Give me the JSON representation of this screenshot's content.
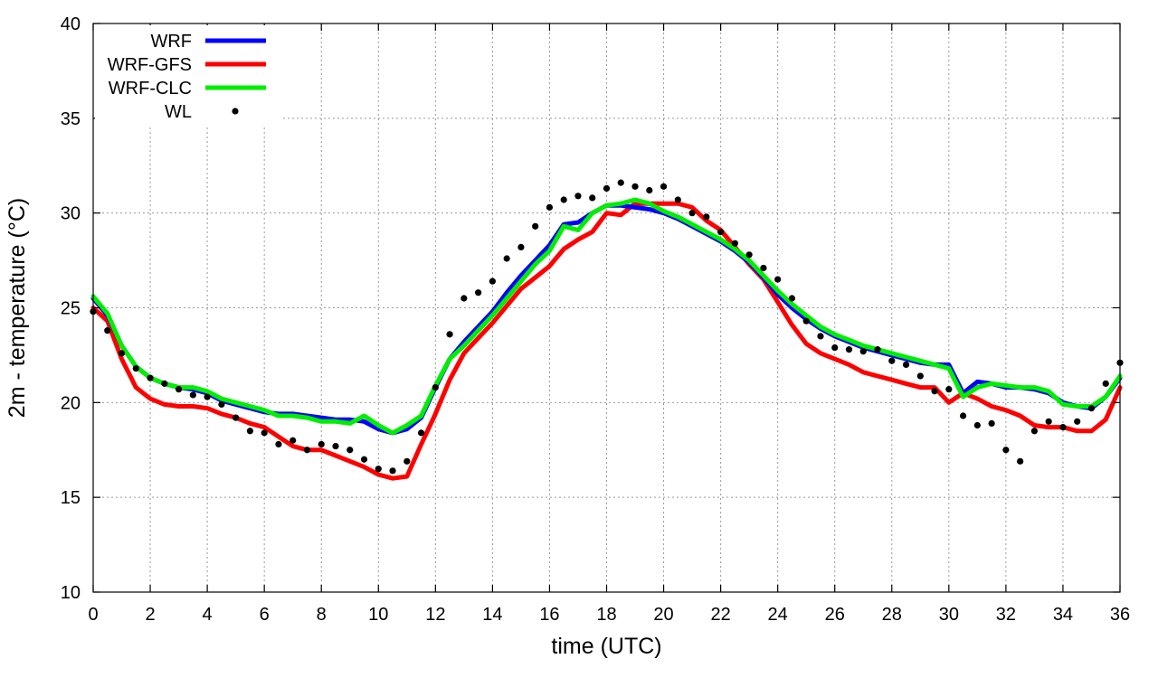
{
  "chart_data": {
    "type": "line",
    "title": "",
    "xlabel": "time (UTC)",
    "ylabel": "2m - temperature (°C)",
    "xlim": [
      0,
      36
    ],
    "ylim": [
      10,
      40
    ],
    "xticks": [
      0,
      2,
      4,
      6,
      8,
      10,
      12,
      14,
      16,
      18,
      20,
      22,
      24,
      26,
      28,
      30,
      32,
      34,
      36
    ],
    "xtick_labels": [
      "0",
      "2",
      "4",
      "6",
      "8",
      "10",
      "12",
      "14",
      "16",
      "18",
      "20",
      "22",
      "24",
      "26",
      "28",
      "30",
      "32",
      "34",
      "36"
    ],
    "yticks": [
      10,
      15,
      20,
      25,
      30,
      35,
      40
    ],
    "ytick_labels": [
      "10",
      "15",
      "20",
      "25",
      "30",
      "35",
      "40"
    ],
    "grid": true,
    "legend_position": "top-left",
    "series": [
      {
        "name": "WRF",
        "style": "line",
        "color": "#0000ff",
        "x": [
          0,
          0.5,
          1,
          1.5,
          2,
          2.5,
          3,
          3.5,
          4,
          4.5,
          5,
          5.5,
          6,
          6.5,
          7,
          7.5,
          8,
          8.5,
          9,
          9.5,
          10,
          10.5,
          11,
          11.5,
          12,
          12.5,
          13,
          13.5,
          14,
          14.5,
          15,
          15.5,
          16,
          16.5,
          17,
          17.5,
          18,
          18.5,
          19,
          19.5,
          20,
          20.5,
          21,
          21.5,
          22,
          22.5,
          23,
          23.5,
          24,
          24.5,
          25,
          25.5,
          26,
          26.5,
          27,
          27.5,
          28,
          28.5,
          29,
          29.5,
          30,
          30.5,
          31,
          31.5,
          32,
          32.5,
          33,
          33.5,
          34,
          34.5,
          35,
          35.5,
          36
        ],
        "y": [
          25.5,
          24.6,
          23.0,
          21.9,
          21.3,
          21.0,
          20.8,
          20.7,
          20.5,
          20.1,
          19.9,
          19.7,
          19.5,
          19.4,
          19.4,
          19.3,
          19.2,
          19.1,
          19.1,
          19.0,
          18.6,
          18.4,
          18.6,
          19.2,
          20.8,
          22.3,
          23.2,
          24.0,
          24.8,
          25.8,
          26.7,
          27.5,
          28.3,
          29.4,
          29.5,
          30.0,
          30.4,
          30.4,
          30.3,
          30.2,
          30.0,
          29.7,
          29.3,
          28.9,
          28.5,
          28.0,
          27.4,
          26.6,
          25.7,
          25.0,
          24.4,
          23.9,
          23.5,
          23.2,
          22.9,
          22.7,
          22.5,
          22.3,
          22.1,
          22.0,
          22.0,
          20.5,
          21.1,
          21.0,
          20.8,
          20.8,
          20.7,
          20.5,
          20.0,
          19.8,
          19.7,
          20.3,
          21.3
        ]
      },
      {
        "name": "WRF-GFS",
        "style": "line",
        "color": "#ff0000",
        "x": [
          0,
          0.5,
          1,
          1.5,
          2,
          2.5,
          3,
          3.5,
          4,
          4.5,
          5,
          5.5,
          6,
          6.5,
          7,
          7.5,
          8,
          8.5,
          9,
          9.5,
          10,
          10.5,
          11,
          11.5,
          12,
          12.5,
          13,
          13.5,
          14,
          14.5,
          15,
          15.5,
          16,
          16.5,
          17,
          17.5,
          18,
          18.5,
          19,
          19.5,
          20,
          20.5,
          21,
          21.5,
          22,
          22.5,
          23,
          23.5,
          24,
          24.5,
          25,
          25.5,
          26,
          26.5,
          27,
          27.5,
          28,
          28.5,
          29,
          29.5,
          30,
          30.5,
          31,
          31.5,
          32,
          32.5,
          33,
          33.5,
          34,
          34.5,
          35,
          35.5,
          36
        ],
        "y": [
          25.0,
          24.3,
          22.3,
          20.8,
          20.2,
          19.9,
          19.8,
          19.8,
          19.7,
          19.4,
          19.2,
          18.9,
          18.7,
          18.2,
          17.7,
          17.5,
          17.5,
          17.2,
          16.9,
          16.6,
          16.2,
          16.0,
          16.1,
          17.8,
          19.4,
          21.2,
          22.6,
          23.4,
          24.2,
          25.1,
          26.0,
          26.6,
          27.2,
          28.1,
          28.6,
          29.0,
          30.0,
          29.9,
          30.5,
          30.5,
          30.5,
          30.5,
          30.3,
          29.6,
          29.1,
          28.2,
          27.3,
          26.5,
          25.3,
          24.1,
          23.1,
          22.6,
          22.3,
          22.0,
          21.6,
          21.4,
          21.2,
          21.0,
          20.8,
          20.8,
          20.0,
          20.5,
          20.2,
          19.8,
          19.6,
          19.3,
          18.8,
          18.7,
          18.7,
          18.5,
          18.5,
          19.1,
          20.8
        ]
      },
      {
        "name": "WRF-CLC",
        "style": "line",
        "color": "#00ee00",
        "x": [
          0,
          0.5,
          1,
          1.5,
          2,
          2.5,
          3,
          3.5,
          4,
          4.5,
          5,
          5.5,
          6,
          6.5,
          7,
          7.5,
          8,
          8.5,
          9,
          9.5,
          10,
          10.5,
          11,
          11.5,
          12,
          12.5,
          13,
          13.5,
          14,
          14.5,
          15,
          15.5,
          16,
          16.5,
          17,
          17.5,
          18,
          18.5,
          19,
          19.5,
          20,
          20.5,
          21,
          21.5,
          22,
          22.5,
          23,
          23.5,
          24,
          24.5,
          25,
          25.5,
          26,
          26.5,
          27,
          27.5,
          28,
          28.5,
          29,
          29.5,
          30,
          30.5,
          31,
          31.5,
          32,
          32.5,
          33,
          33.5,
          34,
          34.5,
          35,
          35.5,
          36
        ],
        "y": [
          25.6,
          24.7,
          23.0,
          21.9,
          21.3,
          21.0,
          20.8,
          20.8,
          20.6,
          20.2,
          20.0,
          19.8,
          19.6,
          19.3,
          19.3,
          19.2,
          19.0,
          19.0,
          18.9,
          19.3,
          18.8,
          18.4,
          18.8,
          19.3,
          20.9,
          22.3,
          23.0,
          23.8,
          24.6,
          25.5,
          26.4,
          27.3,
          28.0,
          29.3,
          29.1,
          30.0,
          30.4,
          30.5,
          30.7,
          30.5,
          30.1,
          29.8,
          29.4,
          29.0,
          28.6,
          28.1,
          27.5,
          26.7,
          25.9,
          25.2,
          24.6,
          24.0,
          23.6,
          23.3,
          23.0,
          22.8,
          22.6,
          22.4,
          22.2,
          22.0,
          21.8,
          20.3,
          20.8,
          21.0,
          20.9,
          20.8,
          20.8,
          20.6,
          19.9,
          19.8,
          19.8,
          20.3,
          21.4
        ]
      },
      {
        "name": "WL",
        "style": "points",
        "color": "#000000",
        "x": [
          0,
          0.5,
          1,
          1.5,
          2,
          2.5,
          3,
          3.5,
          4,
          4.5,
          5,
          5.5,
          6,
          6.5,
          7,
          7.5,
          8,
          8.5,
          9,
          9.5,
          10,
          10.5,
          11,
          11.5,
          12,
          12.5,
          13,
          13.5,
          14,
          14.5,
          15,
          15.5,
          16,
          16.5,
          17,
          17.5,
          18,
          18.5,
          19,
          19.5,
          20,
          20.5,
          21,
          21.5,
          22,
          22.5,
          23,
          23.5,
          24,
          24.5,
          25,
          25.5,
          26,
          26.5,
          27,
          27.5,
          28,
          28.5,
          29,
          29.5,
          30,
          30.5,
          31,
          31.5,
          32,
          32.5,
          33,
          33.5,
          34,
          34.5,
          35,
          35.5,
          36
        ],
        "y": [
          24.8,
          23.8,
          22.6,
          21.8,
          21.3,
          21.0,
          20.7,
          20.4,
          20.3,
          19.9,
          19.2,
          18.5,
          18.4,
          17.8,
          18.0,
          17.5,
          17.8,
          17.7,
          17.5,
          17.0,
          16.5,
          16.4,
          16.9,
          18.4,
          20.8,
          23.6,
          25.5,
          25.8,
          26.4,
          27.6,
          28.2,
          29.3,
          30.3,
          30.7,
          30.9,
          30.8,
          31.3,
          31.6,
          31.4,
          31.2,
          31.4,
          30.7,
          30.0,
          29.8,
          29.0,
          28.4,
          27.8,
          27.1,
          26.5,
          25.5,
          24.3,
          23.5,
          22.9,
          22.8,
          22.7,
          22.8,
          22.2,
          22.0,
          21.4,
          20.6,
          20.7,
          19.3,
          18.8,
          18.9,
          17.5,
          16.9,
          18.5,
          19.0,
          18.7,
          19.0,
          19.7,
          21.0,
          22.1
        ]
      }
    ]
  }
}
